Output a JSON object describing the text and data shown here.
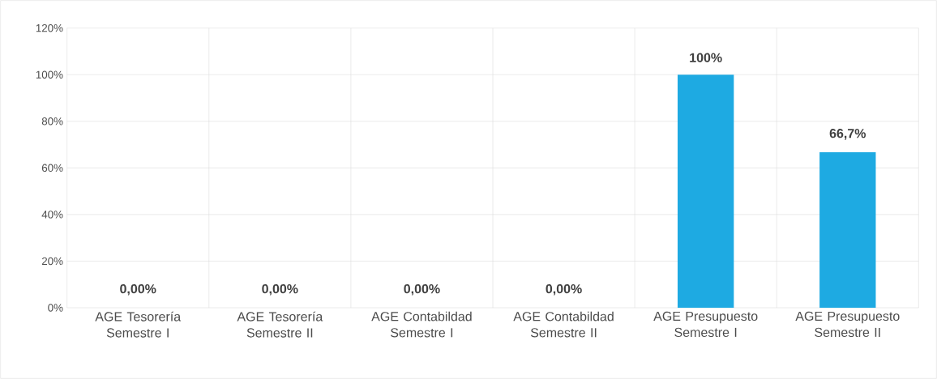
{
  "chart_data": {
    "type": "bar",
    "categories": [
      "AGE Tesorería Semestre I",
      "AGE Tesorería Semestre II",
      "AGE Contabildad Semestre I",
      "AGE Contabildad Semestre II",
      "AGE Presupuesto Semestre I",
      "AGE Presupuesto Semestre II"
    ],
    "values": [
      0,
      0,
      0,
      0,
      100,
      66.7
    ],
    "value_labels": [
      "0,00%",
      "0,00%",
      "0,00%",
      "0,00%",
      "100%",
      "66,7%"
    ],
    "color": "#1eaae2",
    "ylim": [
      0,
      120
    ],
    "yticks": [
      {
        "value": 0,
        "label": "0%"
      },
      {
        "value": 20,
        "label": "20%"
      },
      {
        "value": 40,
        "label": "40%"
      },
      {
        "value": 60,
        "label": "60%"
      },
      {
        "value": 80,
        "label": "80%"
      },
      {
        "value": 100,
        "label": "100%"
      },
      {
        "value": 120,
        "label": "120%"
      }
    ],
    "grid": true
  }
}
